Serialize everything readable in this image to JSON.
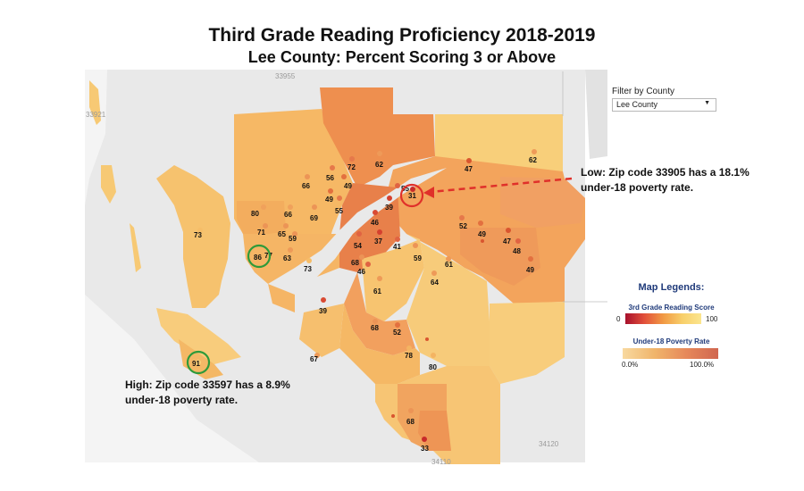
{
  "title": "Third Grade Reading Proficiency 2018-2019",
  "subtitle": "Lee County:  Percent Scoring 3 or Above",
  "filter": {
    "label": "Filter by County",
    "selected": "Lee County"
  },
  "callouts": {
    "low": "Low:  Zip code 33905 has a 18.1% under-18 poverty rate.",
    "high": "High: Zip code 33597 has a 8.9% under-18 poverty rate."
  },
  "legend": {
    "title": "Map Legends:",
    "score": {
      "label": "3rd Grade Reading Score",
      "min": "0",
      "max": "100"
    },
    "poverty": {
      "label": "Under-18 Poverty Rate",
      "min": "0.0%",
      "max": "100.0%"
    }
  },
  "colors": {
    "low_score": "#a7102c",
    "high_score": "#fbe58e",
    "low_poverty": "#f8d9a0",
    "high_poverty": "#d0664f",
    "highlight_low": "#e0302a",
    "highlight_high": "#2e9a3a"
  },
  "background_zip_labels": [
    "33955",
    "33921",
    "34120",
    "34110"
  ],
  "scores": [
    "80",
    "66",
    "71",
    "65",
    "59",
    "86",
    "77",
    "63",
    "73",
    "73",
    "66",
    "56",
    "72",
    "49",
    "69",
    "55",
    "49",
    "62",
    "62",
    "47",
    "55",
    "31",
    "39",
    "46",
    "37",
    "54",
    "68",
    "46",
    "41",
    "59",
    "52",
    "49",
    "47",
    "48",
    "49",
    "61",
    "64",
    "61",
    "39",
    "68",
    "52",
    "78",
    "80",
    "67",
    "91",
    "68",
    "33"
  ],
  "highlights": {
    "low_score": "31",
    "high_score": "91",
    "mid_score": "86"
  }
}
